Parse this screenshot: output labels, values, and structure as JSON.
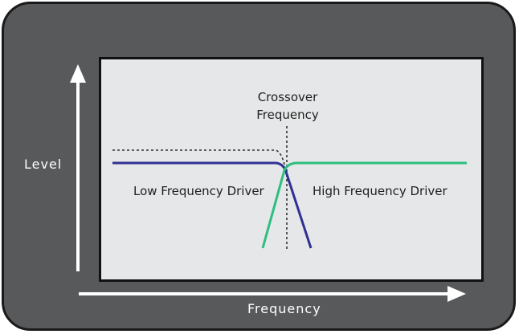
{
  "axes": {
    "y_label": "Level",
    "x_label": "Frequency"
  },
  "annotations": {
    "crossover_line1": "Crossover",
    "crossover_line2": "Frequency",
    "low_driver": "Low Frequency Driver",
    "high_driver": "High Frequency Driver"
  },
  "colors": {
    "frame": "#58595b",
    "plot_background": "#e6e7e8",
    "low_driver_curve": "#2e3192",
    "high_driver_curve": "#2dbf7f",
    "axis_arrows": "#ffffff"
  }
}
